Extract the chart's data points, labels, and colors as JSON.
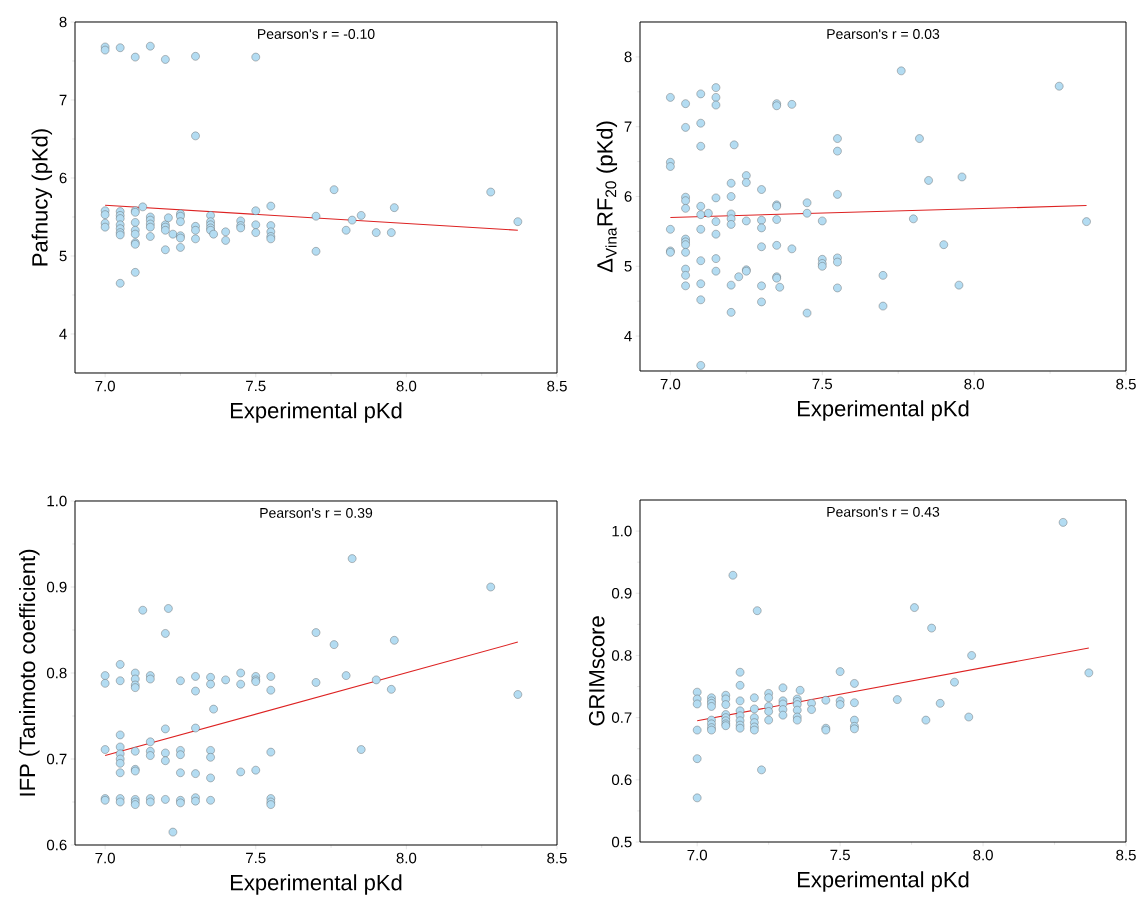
{
  "chart_data": [
    {
      "type": "scatter",
      "xlabel": "Experimental pKd",
      "ylabel": "Pafnucy (pKd)",
      "annotations": [
        "Pearson's r = -0.10"
      ],
      "xlim": [
        6.9,
        8.5
      ],
      "ylim": [
        3.5,
        8
      ],
      "xticks": [
        {
          "value": 7,
          "label": "7.0"
        },
        {
          "value": 7.5,
          "label": "7.5"
        },
        {
          "value": 8,
          "label": "8.0"
        },
        {
          "value": 8.5,
          "label": "8.5"
        }
      ],
      "yticks": [
        4,
        5,
        6,
        7,
        8
      ],
      "series": [
        {
          "color": "#b3dcf2",
          "x": [
            7.0,
            7.0,
            7.0,
            7.0,
            7.0,
            7.0,
            7.05,
            7.05,
            7.05,
            7.05,
            7.05,
            7.05,
            7.05,
            7.05,
            7.05,
            7.1,
            7.1,
            7.1,
            7.1,
            7.1,
            7.1,
            7.1,
            7.1,
            7.1,
            7.125,
            7.15,
            7.15,
            7.15,
            7.15,
            7.15,
            7.15,
            7.2,
            7.2,
            7.2,
            7.2,
            7.2,
            7.21,
            7.225,
            7.25,
            7.25,
            7.25,
            7.25,
            7.25,
            7.25,
            7.3,
            7.3,
            7.3,
            7.3,
            7.3,
            7.35,
            7.35,
            7.35,
            7.35,
            7.35,
            7.36,
            7.4,
            7.4,
            7.45,
            7.45,
            7.45,
            7.5,
            7.5,
            7.5,
            7.5,
            7.55,
            7.55,
            7.55,
            7.55,
            7.55,
            7.7,
            7.7,
            7.76,
            7.8,
            7.82,
            7.85,
            7.9,
            7.95,
            7.96,
            8.28,
            8.37
          ],
          "values": [
            7.68,
            7.64,
            5.58,
            5.53,
            5.42,
            5.37,
            7.67,
            5.57,
            5.52,
            5.48,
            5.4,
            5.35,
            5.3,
            5.27,
            4.65,
            7.55,
            5.58,
            5.56,
            5.43,
            5.33,
            5.28,
            5.17,
            5.15,
            4.79,
            5.63,
            7.69,
            5.5,
            5.46,
            5.41,
            5.37,
            5.25,
            7.52,
            5.4,
            5.37,
            5.33,
            5.08,
            5.49,
            5.28,
            5.54,
            5.51,
            5.44,
            5.26,
            5.23,
            5.11,
            7.56,
            6.54,
            5.38,
            5.33,
            5.22,
            5.52,
            5.44,
            5.4,
            5.36,
            5.33,
            5.28,
            5.31,
            5.2,
            5.45,
            5.39,
            5.36,
            7.55,
            5.58,
            5.4,
            5.3,
            5.64,
            5.39,
            5.31,
            5.25,
            5.22,
            5.51,
            5.06,
            5.85,
            5.33,
            5.46,
            5.52,
            5.3,
            5.3,
            5.62,
            5.82,
            5.44
          ]
        },
        {
          "type": "line",
          "marker": "none",
          "color": "#dd2222",
          "x": [
            7.0,
            8.37
          ],
          "values": [
            5.65,
            5.33
          ]
        }
      ]
    },
    {
      "type": "scatter",
      "xlabel": "Experimental pKd",
      "ylabel": "Δ$_{Vina}$RF$_{20}$ (pKd)",
      "annotations": [
        "Pearson's r = 0.03"
      ],
      "xlim": [
        6.9,
        8.5
      ],
      "ylim": [
        3.5,
        8.5
      ],
      "xticks": [
        {
          "value": 7,
          "label": "7.0"
        },
        {
          "value": 7.5,
          "label": "7.5"
        },
        {
          "value": 8,
          "label": "8.0"
        },
        {
          "value": 8.5,
          "label": "8.5"
        }
      ],
      "yticks": [
        4,
        5,
        6,
        7,
        8
      ],
      "series": [
        {
          "color": "#b3dcf2",
          "x": [
            7.0,
            7.0,
            7.0,
            7.0,
            7.0,
            7.0,
            7.05,
            7.05,
            7.05,
            7.05,
            7.05,
            7.05,
            7.05,
            7.05,
            7.05,
            7.05,
            7.05,
            7.05,
            7.1,
            7.1,
            7.1,
            7.1,
            7.1,
            7.1,
            7.1,
            7.1,
            7.1,
            7.1,
            7.125,
            7.15,
            7.15,
            7.15,
            7.15,
            7.15,
            7.15,
            7.15,
            7.15,
            7.2,
            7.2,
            7.2,
            7.2,
            7.2,
            7.2,
            7.2,
            7.21,
            7.225,
            7.25,
            7.25,
            7.25,
            7.25,
            7.25,
            7.3,
            7.3,
            7.3,
            7.3,
            7.3,
            7.3,
            7.35,
            7.35,
            7.35,
            7.35,
            7.35,
            7.35,
            7.35,
            7.35,
            7.36,
            7.4,
            7.4,
            7.45,
            7.45,
            7.45,
            7.5,
            7.5,
            7.5,
            7.5,
            7.55,
            7.55,
            7.55,
            7.55,
            7.55,
            7.55,
            7.7,
            7.7,
            7.76,
            7.8,
            7.82,
            7.85,
            7.9,
            7.95,
            7.96,
            8.28,
            8.37
          ],
          "values": [
            7.42,
            6.49,
            6.43,
            5.53,
            5.22,
            5.2,
            7.33,
            6.99,
            5.99,
            5.94,
            5.83,
            5.39,
            5.35,
            5.31,
            5.2,
            4.96,
            4.87,
            4.72,
            7.47,
            7.05,
            6.72,
            5.86,
            5.74,
            5.53,
            5.08,
            4.75,
            4.52,
            3.58,
            5.76,
            7.56,
            7.42,
            7.31,
            5.98,
            5.64,
            5.46,
            5.11,
            4.93,
            6.19,
            6.0,
            5.75,
            5.68,
            5.6,
            4.73,
            4.34,
            6.74,
            4.85,
            6.3,
            6.2,
            5.65,
            4.95,
            4.93,
            6.1,
            5.66,
            5.55,
            5.28,
            4.72,
            4.49,
            7.33,
            7.3,
            5.88,
            5.86,
            5.67,
            5.3,
            4.85,
            4.83,
            4.7,
            7.32,
            5.25,
            5.91,
            5.76,
            4.33,
            5.65,
            5.1,
            5.04,
            5.0,
            6.83,
            6.65,
            6.03,
            5.12,
            5.06,
            4.69,
            4.87,
            4.43,
            7.8,
            5.68,
            6.83,
            6.23,
            5.31,
            4.73,
            6.28,
            7.58,
            5.64
          ]
        },
        {
          "type": "line",
          "marker": "none",
          "color": "#dd2222",
          "x": [
            7.0,
            8.37
          ],
          "values": [
            5.7,
            5.87
          ]
        }
      ]
    },
    {
      "type": "scatter",
      "xlabel": "Experimental pKd",
      "ylabel": "IFP (Tanimoto coefficient)",
      "annotations": [
        "Pearson's r = 0.39"
      ],
      "xlim": [
        6.9,
        8.5
      ],
      "ylim": [
        0.6,
        1.0
      ],
      "xticks": [
        {
          "value": 7,
          "label": "7.0"
        },
        {
          "value": 7.5,
          "label": "7.5"
        },
        {
          "value": 8,
          "label": "8.0"
        },
        {
          "value": 8.5,
          "label": "8.5"
        }
      ],
      "yticks": [
        0.6,
        0.7,
        0.8,
        0.9,
        {
          "value": 1,
          "label": "1.0"
        }
      ],
      "series": [
        {
          "color": "#b3dcf2",
          "x": [
            7.0,
            7.0,
            7.0,
            7.0,
            7.0,
            7.05,
            7.05,
            7.05,
            7.05,
            7.05,
            7.05,
            7.05,
            7.05,
            7.05,
            7.05,
            7.1,
            7.1,
            7.1,
            7.1,
            7.1,
            7.1,
            7.1,
            7.1,
            7.1,
            7.1,
            7.125,
            7.15,
            7.15,
            7.15,
            7.15,
            7.15,
            7.15,
            7.15,
            7.2,
            7.2,
            7.2,
            7.2,
            7.2,
            7.21,
            7.225,
            7.25,
            7.25,
            7.25,
            7.25,
            7.25,
            7.25,
            7.3,
            7.3,
            7.3,
            7.3,
            7.3,
            7.3,
            7.35,
            7.35,
            7.35,
            7.35,
            7.35,
            7.35,
            7.36,
            7.4,
            7.45,
            7.45,
            7.45,
            7.5,
            7.5,
            7.5,
            7.5,
            7.55,
            7.55,
            7.55,
            7.55,
            7.55,
            7.55,
            7.7,
            7.7,
            7.76,
            7.8,
            7.82,
            7.85,
            7.9,
            7.95,
            7.96,
            8.28,
            8.37
          ],
          "values": [
            0.797,
            0.788,
            0.711,
            0.654,
            0.652,
            0.81,
            0.791,
            0.728,
            0.714,
            0.706,
            0.7,
            0.695,
            0.684,
            0.654,
            0.65,
            0.8,
            0.793,
            0.786,
            0.783,
            0.709,
            0.688,
            0.686,
            0.653,
            0.65,
            0.647,
            0.873,
            0.797,
            0.793,
            0.72,
            0.709,
            0.704,
            0.654,
            0.65,
            0.846,
            0.735,
            0.707,
            0.698,
            0.653,
            0.875,
            0.615,
            0.791,
            0.71,
            0.705,
            0.684,
            0.652,
            0.649,
            0.796,
            0.779,
            0.736,
            0.683,
            0.655,
            0.651,
            0.795,
            0.787,
            0.71,
            0.702,
            0.678,
            0.652,
            0.758,
            0.792,
            0.8,
            0.787,
            0.685,
            0.796,
            0.792,
            0.79,
            0.687,
            0.796,
            0.78,
            0.708,
            0.654,
            0.65,
            0.647,
            0.847,
            0.789,
            0.833,
            0.797,
            0.933,
            0.711,
            0.792,
            0.781,
            0.838,
            0.9,
            0.775
          ]
        },
        {
          "type": "line",
          "marker": "none",
          "color": "#dd2222",
          "x": [
            7.0,
            8.37
          ],
          "values": [
            0.704,
            0.836
          ]
        }
      ]
    },
    {
      "type": "scatter",
      "xlabel": "Experimental pKd",
      "ylabel": "GRIMscore",
      "annotations": [
        "Pearson's r = 0.43"
      ],
      "xlim": [
        6.8,
        8.5
      ],
      "ylim": [
        0.5,
        1.05
      ],
      "xticks": [
        {
          "value": 7,
          "label": "7.0"
        },
        {
          "value": 7.5,
          "label": "7.5"
        },
        {
          "value": 8,
          "label": "8.0"
        },
        {
          "value": 8.5,
          "label": "8.5"
        }
      ],
      "yticks": [
        0.5,
        0.6,
        0.7,
        0.8,
        0.9,
        {
          "value": 1,
          "label": "1.0"
        }
      ],
      "series": [
        {
          "color": "#b3dcf2",
          "x": [
            7.0,
            7.0,
            7.0,
            7.0,
            7.0,
            7.0,
            7.05,
            7.05,
            7.05,
            7.05,
            7.05,
            7.05,
            7.05,
            7.05,
            7.1,
            7.1,
            7.1,
            7.1,
            7.1,
            7.1,
            7.1,
            7.1,
            7.125,
            7.15,
            7.15,
            7.15,
            7.15,
            7.15,
            7.15,
            7.15,
            7.15,
            7.2,
            7.2,
            7.2,
            7.2,
            7.2,
            7.2,
            7.21,
            7.225,
            7.25,
            7.25,
            7.25,
            7.25,
            7.25,
            7.3,
            7.3,
            7.3,
            7.3,
            7.3,
            7.35,
            7.35,
            7.35,
            7.35,
            7.35,
            7.35,
            7.36,
            7.4,
            7.4,
            7.45,
            7.45,
            7.45,
            7.5,
            7.5,
            7.5,
            7.55,
            7.55,
            7.55,
            7.55,
            7.55,
            7.7,
            7.76,
            7.8,
            7.82,
            7.85,
            7.9,
            7.95,
            7.96,
            8.28,
            8.37
          ],
          "values": [
            0.741,
            0.73,
            0.722,
            0.68,
            0.634,
            0.571,
            0.732,
            0.727,
            0.723,
            0.718,
            0.696,
            0.69,
            0.684,
            0.68,
            0.736,
            0.73,
            0.721,
            0.705,
            0.7,
            0.695,
            0.69,
            0.687,
            0.929,
            0.773,
            0.752,
            0.727,
            0.711,
            0.703,
            0.695,
            0.688,
            0.683,
            0.732,
            0.714,
            0.7,
            0.692,
            0.685,
            0.68,
            0.872,
            0.616,
            0.739,
            0.732,
            0.718,
            0.71,
            0.696,
            0.748,
            0.727,
            0.722,
            0.713,
            0.704,
            0.73,
            0.726,
            0.721,
            0.712,
            0.701,
            0.696,
            0.744,
            0.723,
            0.713,
            0.728,
            0.683,
            0.68,
            0.774,
            0.727,
            0.721,
            0.755,
            0.724,
            0.696,
            0.686,
            0.682,
            0.729,
            0.877,
            0.696,
            0.844,
            0.723,
            0.757,
            0.701,
            0.8,
            1.014,
            0.772
          ]
        },
        {
          "type": "line",
          "marker": "none",
          "color": "#dd2222",
          "x": [
            7.0,
            8.37
          ],
          "values": [
            0.695,
            0.812
          ]
        }
      ]
    }
  ]
}
